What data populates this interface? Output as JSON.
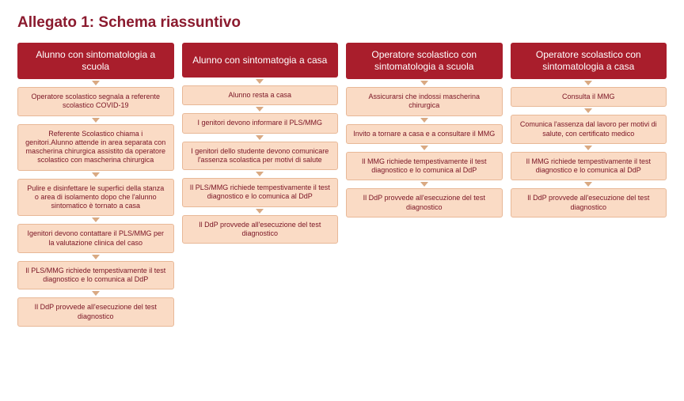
{
  "title": "Allegato 1: Schema riassuntivo",
  "type": "flowchart",
  "colors": {
    "header_bg": "#a91e2c",
    "header_text": "#ffffff",
    "step_bg": "#fadbc5",
    "step_border": "#e8b897",
    "step_text": "#7a1424",
    "arrow": "#d9a982",
    "title_color": "#8b1a2e",
    "page_bg": "#ffffff"
  },
  "fontsize": {
    "title": 19,
    "header": 12,
    "step": 9
  },
  "columns": [
    {
      "header": "Alunno con sintomatologia a scuola",
      "steps": [
        "Operatore scolastico segnala a referente scolastico COVID-19",
        "Referente Scolastico chiama i genitori.Alunno attende in area separata con mascherina chirurgica assistito da operatore scolastico con mascherina chirurgica",
        "Pulire e disinfettare le superfici della stanza o area di isolamento dopo che l'alunno sintomatico è tornato a casa",
        "Igenitori devono contattare il PLS/MMG per la valutazione clinica del caso",
        "Il PLS/MMG richiede tempestivamente il test diagnostico e lo comunica al DdP",
        "Il DdP provvede all'esecuzione del test diagnostico"
      ]
    },
    {
      "header": "Alunno con sintomatogia a casa",
      "steps": [
        "Alunno resta a casa",
        "I genitori devono informare il PLS/MMG",
        "I genitori dello studente devono comunicare l'assenza scolastica per motivi di salute",
        "Il PLS/MMG richiede tempestivamente il test diagnostico e lo comunica al DdP",
        "Il DdP provvede all'esecuzione del test diagnostico"
      ]
    },
    {
      "header": "Operatore scolastico con sintomatologia a scuola",
      "steps": [
        "Assicurarsi che indossi mascherina chirurgica",
        "Invito a tornare a casa e a consultare il MMG",
        "Il MMG richiede tempestivamente il test diagnostico e lo comunica al DdP",
        "Il DdP provvede all'esecuzione del test diagnostico"
      ]
    },
    {
      "header": "Operatore scolastico con sintomatologia a casa",
      "steps": [
        "Consulta il MMG",
        "Comunica l'assenza dal lavoro per motivi di salute, con certificato medico",
        "Il MMG richiede tempestivamente il test diagnostico e lo comunica al DdP",
        "Il DdP provvede all'esecuzione del test diagnostico"
      ]
    }
  ]
}
